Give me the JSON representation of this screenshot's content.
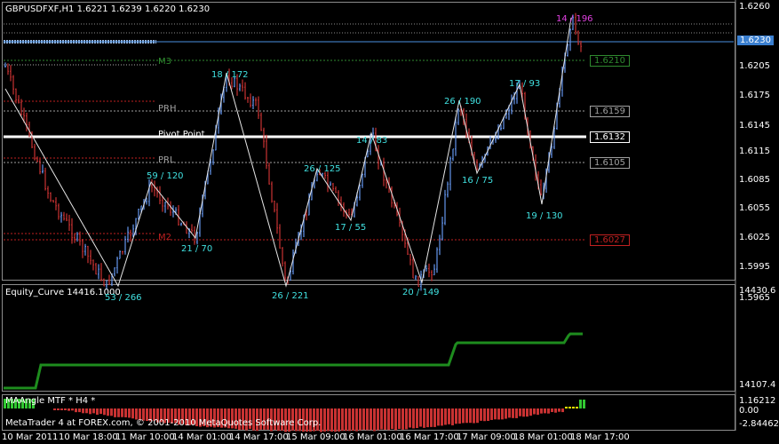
{
  "main_panel": {
    "header": "GBPUSDFXF,H1  1.6221 1.6239 1.6220 1.6230",
    "price_axis": [
      "1.6260",
      "1.6230",
      "1.6205",
      "1.6175",
      "1.6145",
      "1.6115",
      "1.6085",
      "1.6055",
      "1.6025",
      "1.5995",
      "1.5965"
    ],
    "current_price_tag": "1.6230",
    "level_lines": [
      {
        "label": "M3",
        "tag": "1.6210",
        "color": "#2f8a2f"
      },
      {
        "label": "PRH",
        "tag": "1.6159",
        "color": "#a0a0a0"
      },
      {
        "label": "Pivot Point",
        "tag": "1.6132",
        "color": "#ffffff"
      },
      {
        "label": "PRL",
        "tag": "1.6105",
        "color": "#a0a0a0"
      },
      {
        "label": "M2",
        "tag": "1.6027",
        "color": "#c02020"
      }
    ],
    "zigzag_labels": [
      {
        "text": "53 / 266",
        "color": "#40e0e0"
      },
      {
        "text": "59 / 120",
        "color": "#40e0e0"
      },
      {
        "text": "21 / 70",
        "color": "#40e0e0"
      },
      {
        "text": "18 / 172",
        "color": "#40e0e0"
      },
      {
        "text": "26 / 221",
        "color": "#40e0e0"
      },
      {
        "text": "26 / 125",
        "color": "#40e0e0"
      },
      {
        "text": "17 / 55",
        "color": "#40e0e0"
      },
      {
        "text": "14 / 83",
        "color": "#40e0e0"
      },
      {
        "text": "20 / 149",
        "color": "#40e0e0"
      },
      {
        "text": "26 / 190",
        "color": "#40e0e0"
      },
      {
        "text": "16 / 75",
        "color": "#40e0e0"
      },
      {
        "text": "17 / 93",
        "color": "#40e0e0"
      },
      {
        "text": "19 / 130",
        "color": "#40e0e0"
      },
      {
        "text": "14 / 196",
        "color": "#e040e0"
      }
    ]
  },
  "equity_panel": {
    "header": "Equity_Curve 14416.1000",
    "axis": [
      "14430.6",
      "14107.4"
    ],
    "color": "#1e8c1e"
  },
  "angle_panel": {
    "header": "MAAngle MTF * H4 *",
    "axis": [
      "1.16212",
      "0.00",
      "-2.84462"
    ],
    "footer": "MetaTrader 4 at FOREX.com, © 2001-2010 MetaQuotes Software Corp."
  },
  "time_axis": [
    "10 Mar 2011",
    "10 Mar 18:00",
    "11 Mar 10:00",
    "14 Mar 01:00",
    "14 Mar 17:00",
    "15 Mar 09:00",
    "16 Mar 01:00",
    "16 Mar 17:00",
    "17 Mar 09:00",
    "18 Mar 01:00",
    "18 Mar 17:00"
  ],
  "colors": {
    "bull": "#6495ed",
    "bear": "#c83232",
    "grid": "#5a5a5a",
    "zigzag": "#e6e6e6"
  }
}
